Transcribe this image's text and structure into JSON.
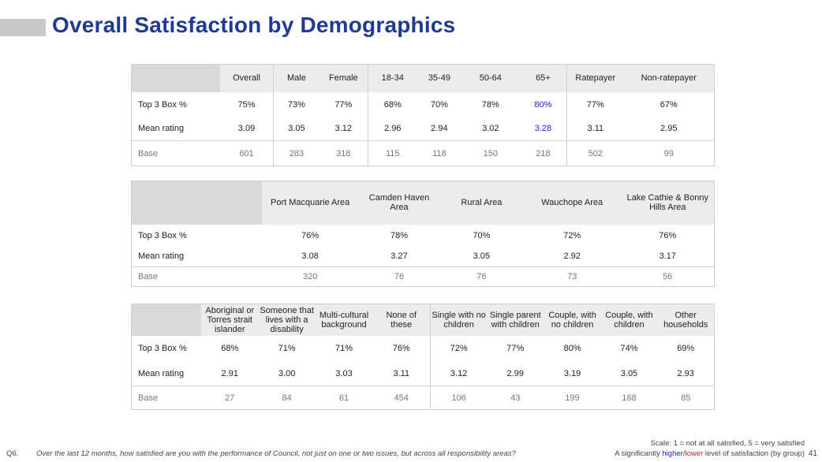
{
  "page": {
    "title": "Overall Satisfaction by Demographics",
    "page_number": "41",
    "scale_note": "Scale: 1 = not at all satisfied, 5 = very satisfied",
    "question_number": "Q6.",
    "question_text": "Over the last 12 months, how satisfied are you with the performance of Council, not just on one or two issues, but across all responsibility areas?",
    "sig_prefix": "A significantly ",
    "sig_higher": "higher",
    "sig_slash": "/",
    "sig_lower": "lower",
    "sig_suffix": " level of satisfaction (by group)"
  },
  "colors": {
    "title": "#1f3a93",
    "higher": "#2222cc",
    "lower": "#cc2222",
    "header_bg": "#ececec"
  },
  "row_labels": {
    "top3": "Top 3 Box %",
    "mean": "Mean rating",
    "base": "Base"
  },
  "table1": {
    "headers": [
      "Overall",
      "Male",
      "Female",
      "18-34",
      "35-49",
      "50-64",
      "65+",
      "Ratepayer",
      "Non-ratepayer"
    ],
    "top3": [
      "75%",
      "73%",
      "77%",
      "68%",
      "70%",
      "78%",
      "80%",
      "77%",
      "67%"
    ],
    "mean": [
      "3.09",
      "3.05",
      "3.12",
      "2.96",
      "2.94",
      "3.02",
      "3.28",
      "3.11",
      "2.95"
    ],
    "base": [
      "601",
      "283",
      "318",
      "115",
      "118",
      "150",
      "218",
      "502",
      "99"
    ]
  },
  "table2": {
    "headers": [
      "Port Macquarie Area",
      "Camden Haven Area",
      "Rural Area",
      "Wauchope Area",
      "Lake Cathie & Bonny Hills Area"
    ],
    "top3": [
      "76%",
      "78%",
      "70%",
      "72%",
      "76%"
    ],
    "mean": [
      "3.08",
      "3.27",
      "3.05",
      "2.92",
      "3.17"
    ],
    "base": [
      "320",
      "76",
      "76",
      "73",
      "56"
    ]
  },
  "table3": {
    "headers": [
      "Aboriginal or Torres strait islander",
      "Someone that lives with a disability",
      "Multi-cultural background",
      "None of these",
      "Single with no children",
      "Single parent with children",
      "Couple, with no children",
      "Couple, with children",
      "Other households"
    ],
    "top3": [
      "68%",
      "71%",
      "71%",
      "76%",
      "72%",
      "77%",
      "80%",
      "74%",
      "69%"
    ],
    "mean": [
      "2.91",
      "3.00",
      "3.03",
      "3.11",
      "3.12",
      "2.99",
      "3.19",
      "3.05",
      "2.93"
    ],
    "base": [
      "27",
      "84",
      "61",
      "454",
      "106",
      "43",
      "199",
      "168",
      "85"
    ]
  }
}
